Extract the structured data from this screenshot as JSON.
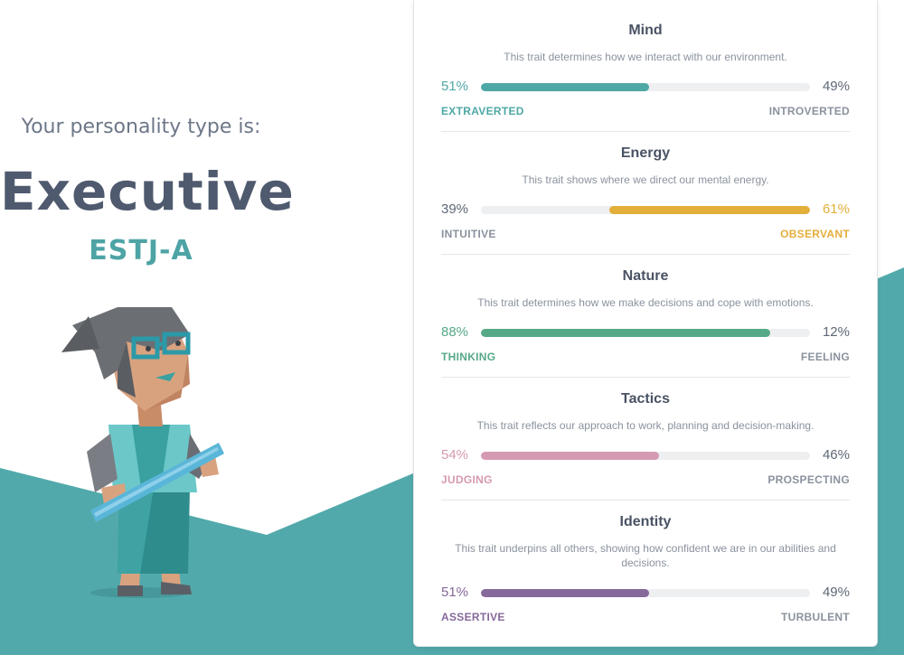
{
  "intro": "Your personality type is:",
  "type_name": "Executive",
  "type_code": "ESTJ-A",
  "colors": {
    "teal": "#4ea3a5",
    "text_dark": "#4f5a6f",
    "mind": "#4ea8a6",
    "energy": "#e4ae3a",
    "nature": "#56a987",
    "tactics": "#d699b2",
    "identity": "#86699b"
  },
  "figure": {
    "icon": "executive-character-illustration"
  },
  "traits": [
    {
      "title": "Mind",
      "description": "This trait determines how we interact with our environment.",
      "left_pct": "51%",
      "right_pct": "49%",
      "left_label": "EXTRAVERTED",
      "right_label": "INTROVERTED",
      "dominant": "left",
      "dominant_value": 0.51,
      "color": "#4ea8a6"
    },
    {
      "title": "Energy",
      "description": "This trait shows where we direct our mental energy.",
      "left_pct": "39%",
      "right_pct": "61%",
      "left_label": "INTUITIVE",
      "right_label": "OBSERVANT",
      "dominant": "right",
      "dominant_value": 0.61,
      "color": "#e4ae3a"
    },
    {
      "title": "Nature",
      "description": "This trait determines how we make decisions and cope with emotions.",
      "left_pct": "88%",
      "right_pct": "12%",
      "left_label": "THINKING",
      "right_label": "FEELING",
      "dominant": "left",
      "dominant_value": 0.88,
      "color": "#56a987"
    },
    {
      "title": "Tactics",
      "description": "This trait reflects our approach to work, planning and decision-making.",
      "left_pct": "54%",
      "right_pct": "46%",
      "left_label": "JUDGING",
      "right_label": "PROSPECTING",
      "dominant": "left",
      "dominant_value": 0.54,
      "color": "#d699b2"
    },
    {
      "title": "Identity",
      "description": "This trait underpins all others, showing how confident we are in our abilities and decisions.",
      "left_pct": "51%",
      "right_pct": "49%",
      "left_label": "ASSERTIVE",
      "right_label": "TURBULENT",
      "dominant": "left",
      "dominant_value": 0.51,
      "color": "#86699b"
    }
  ]
}
